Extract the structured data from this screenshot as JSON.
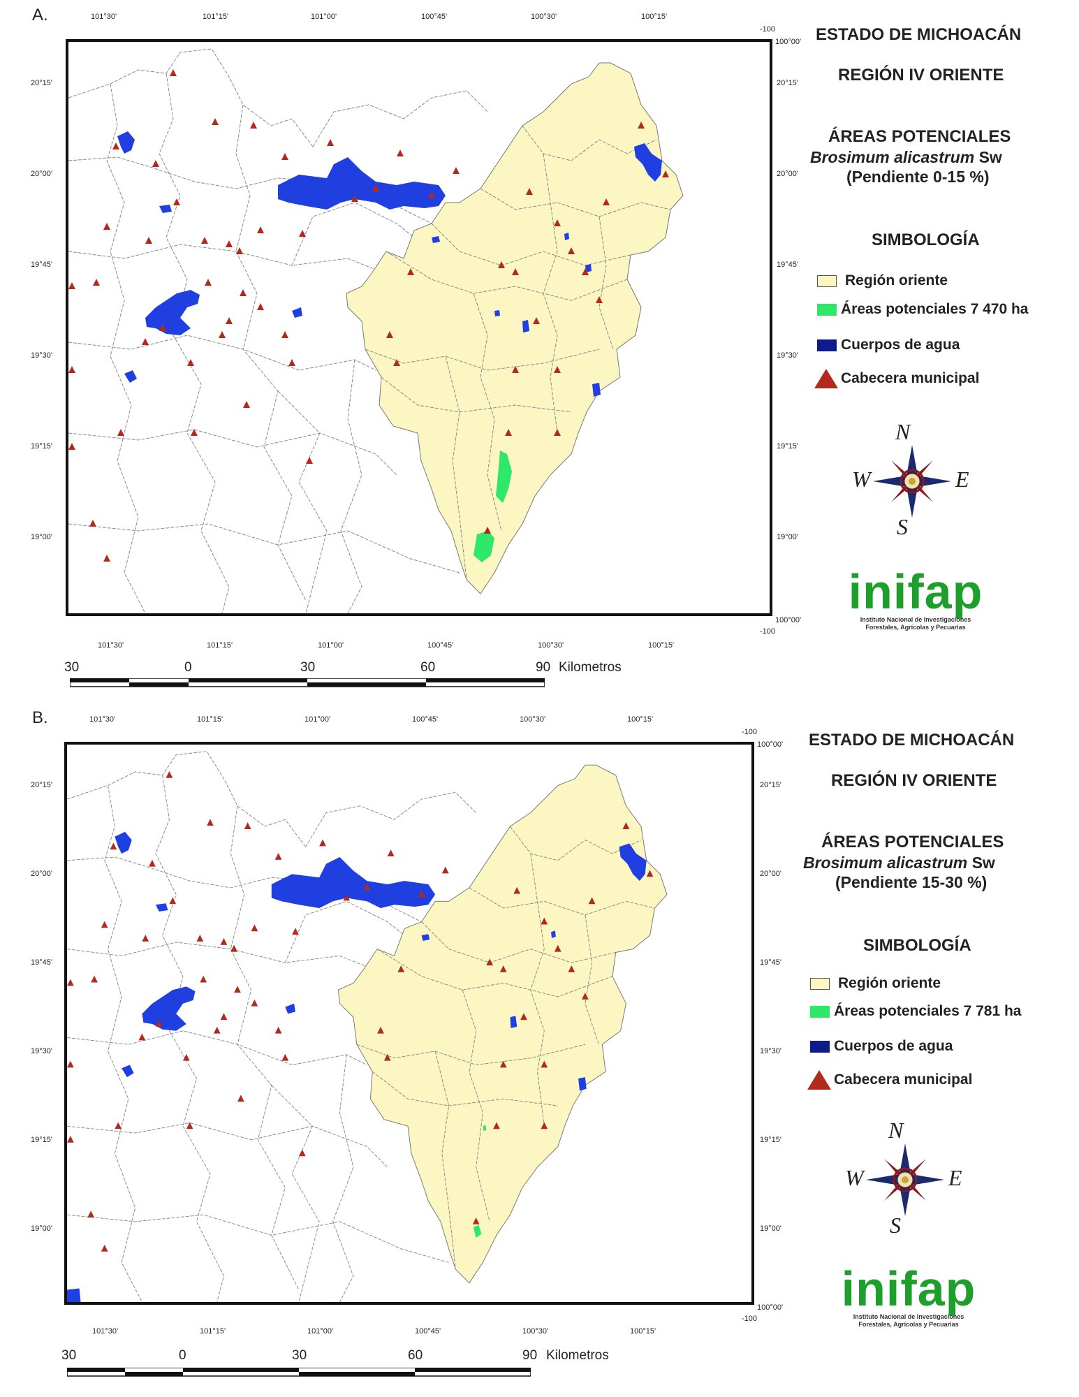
{
  "panels": [
    {
      "label": "A.",
      "title1": "ESTADO DE MICHOACÁN",
      "title2": "REGIÓN IV ORIENTE",
      "title3": "ÁREAS POTENCIALES",
      "species": "Brosimum alicastrum",
      "species_author": "Sw",
      "slope": "(Pendiente 0-15 %)",
      "legend_title": "SIMBOLOGÍA",
      "legend": [
        {
          "label": "Región oriente",
          "color": "#fbf6c2"
        },
        {
          "label": "Áreas potenciales 7 470 ha",
          "color": "#2ee86a"
        },
        {
          "label": "Cuerpos de agua",
          "color": "#0d1c8a"
        },
        {
          "label": "Cabecera municipal",
          "color": "#b22a1c"
        }
      ],
      "top_lon_labels": [
        "101°30'",
        "101°15'",
        "101°00'",
        "100°45'",
        "100°30'",
        "100°15'"
      ],
      "bottom_lon_labels": [
        "101°30'",
        "101°15'",
        "101°00'",
        "100°45'",
        "100°30'",
        "100°15'"
      ],
      "right_lat_labels": [
        "20°15'",
        "20°00'",
        "19°45'",
        "19°30'",
        "19°15'",
        "19°00'"
      ],
      "left_lat_labels": [
        "20°15'",
        "20°00'",
        "19°45'",
        "19°30'",
        "19°15'",
        "19°00'"
      ],
      "corner_top_value": "-100",
      "corner_top_label": "100°00'",
      "corner_bottom_value": "-100",
      "corner_bottom_label": "100°00'",
      "scale_labels": [
        "30",
        "0",
        "30",
        "60",
        "90"
      ],
      "scale_unit": "Kilometros",
      "compass": {
        "n": "N",
        "s": "S",
        "e": "E",
        "w": "W"
      },
      "logo_word": "inifap",
      "logo_line1": "Instituto Nacional de Investigaciones",
      "logo_line2": "Forestales, Agrícolas y Pecuarias"
    },
    {
      "label": "B.",
      "title1": "ESTADO DE MICHOACÁN",
      "title2": "REGIÓN IV ORIENTE",
      "title3": "ÁREAS POTENCIALES",
      "species": "Brosimum alicastrum",
      "species_author": "Sw",
      "slope": "(Pendiente 15-30 %)",
      "legend_title": "SIMBOLOGÍA",
      "legend": [
        {
          "label": "Región oriente",
          "color": "#fbf6c2"
        },
        {
          "label": "Áreas potenciales 7 781 ha",
          "color": "#2ee86a"
        },
        {
          "label": "Cuerpos de agua",
          "color": "#0d1c8a"
        },
        {
          "label": "Cabecera municipal",
          "color": "#b22a1c"
        }
      ],
      "top_lon_labels": [
        "101°30'",
        "101°15'",
        "101°00'",
        "100°45'",
        "100°30'",
        "100°15'"
      ],
      "bottom_lon_labels": [
        "101°30'",
        "101°15'",
        "101°00'",
        "100°45'",
        "100°30'",
        "100°15'"
      ],
      "right_lat_labels": [
        "20°15'",
        "20°00'",
        "19°45'",
        "19°30'",
        "19°15'",
        "19°00'"
      ],
      "left_lat_labels": [
        "20°15'",
        "20°00'",
        "19°45'",
        "19°30'",
        "19°15'",
        "19°00'"
      ],
      "corner_top_value": "-100",
      "corner_top_label": "100°00'",
      "corner_bottom_value": "-100",
      "corner_bottom_label": "100°00'",
      "scale_labels": [
        "30",
        "0",
        "30",
        "60",
        "90"
      ],
      "scale_unit": "Kilometros",
      "compass": {
        "n": "N",
        "s": "S",
        "e": "E",
        "w": "W"
      },
      "logo_word": "inifap",
      "logo_line1": "Instituto Nacional de Investigaciones",
      "logo_line2": "Forestales, Agrícolas y Pecuarias"
    }
  ]
}
